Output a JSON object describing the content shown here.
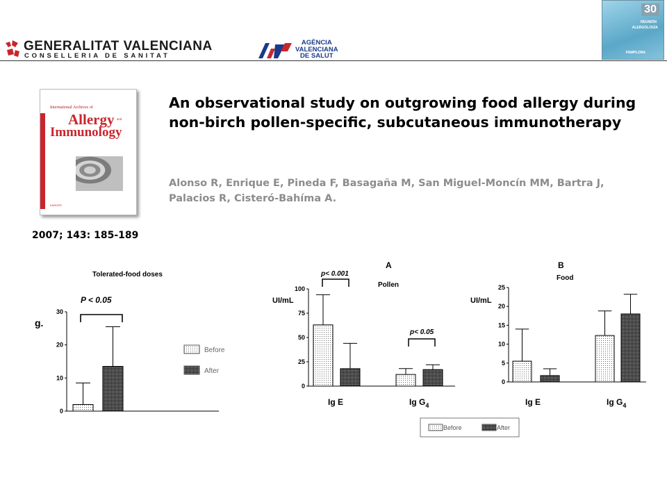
{
  "header": {
    "gv_line1": "GENERALITAT VALENCIANA",
    "gv_line2": "CONSELLERIA DE SANITAT",
    "avs_lines": [
      "AGÈNCIA",
      "VALENCIANA",
      "DE SALUT"
    ],
    "corner_number": "30",
    "corner_line1": "REUNIÓN",
    "corner_line2": "ALERGOLOGÍA",
    "corner_line3": "PAMPLONA"
  },
  "cover": {
    "journal_top": "International Archives of",
    "journal_word1": "Allergy",
    "journal_and": "and",
    "journal_word2": "Immunology",
    "publisher": "KARGER"
  },
  "citation": "2007; 143: 185-189",
  "paper": {
    "title": "An observational study on outgrowing food allergy during non-birch pollen-specific, subcutaneous immunotherapy",
    "authors": "Alonso R, Enrique E, Pineda F, Basagaña M, San Miguel-Moncín MM, Bartra J, Palacios R, Cisteró-Bahíma A."
  },
  "legend": {
    "before": "Before",
    "after": "After"
  },
  "chart_data": [
    {
      "type": "bar",
      "title": "Tolerated-food doses",
      "ylabel": "g.",
      "ylim": [
        0,
        30
      ],
      "yticks": [
        "0",
        "10",
        "20",
        "30"
      ],
      "categories": [
        "Before",
        "After"
      ],
      "values": [
        2,
        13.5
      ],
      "errors": [
        8.5,
        25.5
      ],
      "annotation": "P < 0.05",
      "legend_position": "right",
      "legend": [
        "Before",
        "After"
      ]
    },
    {
      "type": "bar",
      "title": "Pollen",
      "panel": "A",
      "ylabel": "UI/mL",
      "ylim": [
        0,
        100
      ],
      "yticks": [
        "0",
        "25",
        "50",
        "75",
        "100"
      ],
      "categories": [
        "Ig E",
        "Ig G4"
      ],
      "series": [
        {
          "name": "Before",
          "values": [
            63,
            12
          ],
          "errors": [
            94,
            18
          ]
        },
        {
          "name": "After",
          "values": [
            18,
            17
          ],
          "errors": [
            44,
            22
          ]
        }
      ],
      "annotations": [
        "p< 0.001",
        "p< 0.05"
      ]
    },
    {
      "type": "bar",
      "title": "Food",
      "panel": "B",
      "ylabel": "UI/mL",
      "ylim": [
        0,
        25
      ],
      "yticks": [
        "0",
        "5",
        "10",
        "15",
        "20",
        "25"
      ],
      "categories": [
        "Ig E",
        "Ig G4"
      ],
      "series": [
        {
          "name": "Before",
          "values": [
            5.5,
            12.3
          ],
          "errors": [
            14,
            18.8
          ]
        },
        {
          "name": "After",
          "values": [
            1.7,
            18
          ],
          "errors": [
            3.5,
            23.2
          ]
        }
      ],
      "legend_position": "bottom",
      "legend": [
        "Before",
        "After"
      ]
    }
  ]
}
